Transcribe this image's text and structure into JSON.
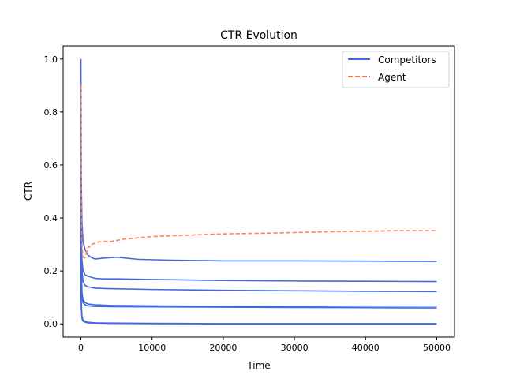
{
  "chart_data": {
    "type": "line",
    "title": "CTR Evolution",
    "xlabel": "Time",
    "ylabel": "CTR",
    "xlim": [
      -2500,
      52500
    ],
    "ylim": [
      -0.05,
      1.05
    ],
    "xticks": [
      0,
      10000,
      20000,
      30000,
      40000,
      50000
    ],
    "yticks": [
      0.0,
      0.2,
      0.4,
      0.6,
      0.8,
      1.0
    ],
    "xtick_labels": [
      "0",
      "10000",
      "20000",
      "30000",
      "40000",
      "50000"
    ],
    "ytick_labels": [
      "0.0",
      "0.2",
      "0.4",
      "0.6",
      "0.8",
      "1.0"
    ],
    "legend": {
      "position": "top-right",
      "entries": [
        {
          "label": "Competitors",
          "color": "#4169e1",
          "style": "solid"
        },
        {
          "label": "Agent",
          "color": "#ff7f50",
          "style": "dashed"
        }
      ]
    },
    "series": [
      {
        "group": "Competitors",
        "color": "#4169e1",
        "dash": false,
        "x": [
          0,
          50,
          150,
          300,
          600,
          1000,
          1500,
          2000,
          3000,
          5000,
          8000,
          12000,
          20000,
          30000,
          40000,
          50000
        ],
        "y": [
          1.0,
          0.55,
          0.38,
          0.31,
          0.28,
          0.26,
          0.25,
          0.245,
          0.248,
          0.252,
          0.244,
          0.241,
          0.238,
          0.238,
          0.237,
          0.236
        ]
      },
      {
        "group": "Competitors",
        "color": "#4169e1",
        "dash": false,
        "x": [
          0,
          50,
          150,
          300,
          600,
          1000,
          2000,
          3000,
          5000,
          10000,
          20000,
          30000,
          40000,
          50000
        ],
        "y": [
          0.6,
          0.35,
          0.24,
          0.2,
          0.185,
          0.18,
          0.172,
          0.17,
          0.17,
          0.168,
          0.164,
          0.162,
          0.161,
          0.16
        ]
      },
      {
        "group": "Competitors",
        "color": "#4169e1",
        "dash": false,
        "x": [
          0,
          50,
          150,
          300,
          600,
          1000,
          2000,
          4000,
          10000,
          20000,
          30000,
          40000,
          50000
        ],
        "y": [
          0.5,
          0.3,
          0.2,
          0.16,
          0.145,
          0.14,
          0.135,
          0.133,
          0.13,
          0.127,
          0.125,
          0.123,
          0.122
        ]
      },
      {
        "group": "Competitors",
        "color": "#4169e1",
        "dash": false,
        "x": [
          0,
          50,
          150,
          300,
          600,
          1000,
          2000,
          4000,
          10000,
          20000,
          30000,
          40000,
          50000
        ],
        "y": [
          0.4,
          0.22,
          0.12,
          0.09,
          0.08,
          0.075,
          0.072,
          0.07,
          0.068,
          0.066,
          0.066,
          0.067,
          0.067
        ]
      },
      {
        "group": "Competitors",
        "color": "#4169e1",
        "dash": false,
        "x": [
          0,
          50,
          150,
          300,
          600,
          1000,
          2000,
          4000,
          10000,
          20000,
          30000,
          40000,
          50000
        ],
        "y": [
          0.35,
          0.18,
          0.1,
          0.08,
          0.072,
          0.068,
          0.066,
          0.065,
          0.064,
          0.063,
          0.062,
          0.061,
          0.06
        ]
      },
      {
        "group": "Competitors",
        "color": "#4169e1",
        "dash": false,
        "x": [
          0,
          50,
          150,
          300,
          600,
          1000,
          2000,
          4000,
          10000,
          20000,
          30000,
          40000,
          50000
        ],
        "y": [
          0.2,
          0.08,
          0.03,
          0.015,
          0.01,
          0.006,
          0.004,
          0.003,
          0.002,
          0.001,
          0.001,
          0.001,
          0.001
        ]
      },
      {
        "group": "Competitors",
        "color": "#4169e1",
        "dash": false,
        "x": [
          0,
          50,
          150,
          300,
          600,
          1000,
          2000,
          4000,
          10000,
          20000,
          30000,
          40000,
          50000
        ],
        "y": [
          0.15,
          0.06,
          0.02,
          0.01,
          0.006,
          0.004,
          0.003,
          0.002,
          0.001,
          0.0,
          0.0,
          0.0,
          0.0
        ]
      },
      {
        "group": "Agent",
        "color": "#ff7f50",
        "dash": true,
        "x": [
          0,
          30,
          80,
          150,
          250,
          400,
          600,
          800,
          1000,
          1200,
          1500,
          2000,
          2500,
          3000,
          3500,
          4000,
          5000,
          6000,
          8000,
          10000,
          15000,
          20000,
          25000,
          30000,
          35000,
          40000,
          45000,
          50000
        ],
        "y": [
          0.9,
          0.6,
          0.4,
          0.3,
          0.26,
          0.25,
          0.25,
          0.27,
          0.29,
          0.29,
          0.3,
          0.305,
          0.31,
          0.31,
          0.312,
          0.31,
          0.315,
          0.32,
          0.325,
          0.33,
          0.335,
          0.34,
          0.342,
          0.345,
          0.348,
          0.35,
          0.352,
          0.352
        ]
      }
    ]
  }
}
